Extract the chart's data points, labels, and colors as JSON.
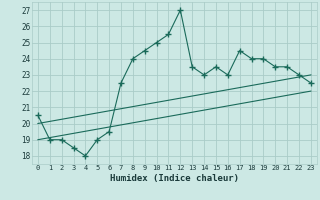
{
  "xlabel": "Humidex (Indice chaleur)",
  "bg_color": "#cce8e4",
  "grid_color": "#aaccc8",
  "line_color": "#1a6a5a",
  "xlim": [
    -0.5,
    23.5
  ],
  "ylim": [
    17.5,
    27.5
  ],
  "xticks": [
    0,
    1,
    2,
    3,
    4,
    5,
    6,
    7,
    8,
    9,
    10,
    11,
    12,
    13,
    14,
    15,
    16,
    17,
    18,
    19,
    20,
    21,
    22,
    23
  ],
  "yticks": [
    18,
    19,
    20,
    21,
    22,
    23,
    24,
    25,
    26,
    27
  ],
  "main_x": [
    0,
    1,
    2,
    3,
    4,
    5,
    6,
    7,
    8,
    9,
    10,
    11,
    12,
    13,
    14,
    15,
    16,
    17,
    18,
    19,
    20,
    21,
    22,
    23
  ],
  "main_y": [
    20.5,
    19.0,
    19.0,
    18.5,
    18.0,
    19.0,
    19.5,
    22.5,
    24.0,
    24.5,
    25.0,
    25.5,
    27.0,
    23.5,
    23.0,
    23.5,
    23.0,
    24.5,
    24.0,
    24.0,
    23.5,
    23.5,
    23.0,
    22.5
  ],
  "trend1_x": [
    0,
    23
  ],
  "trend1_y": [
    20.0,
    23.0
  ],
  "trend2_x": [
    0,
    23
  ],
  "trend2_y": [
    19.0,
    22.0
  ]
}
